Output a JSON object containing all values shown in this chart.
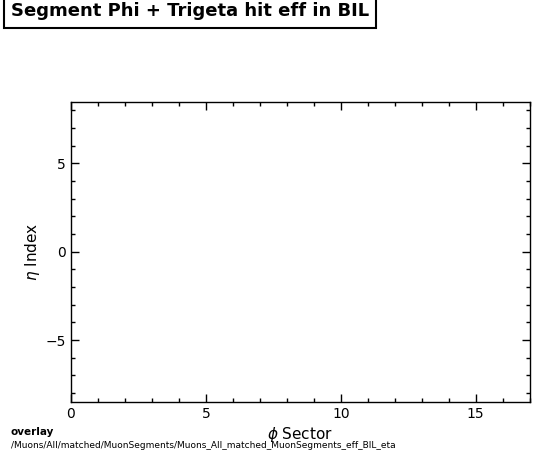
{
  "title": "Segment Phi + Trigeta hit eff in BIL",
  "xlabel": "$\\phi$ Sector",
  "ylabel": "$\\eta$ Index",
  "xlim": [
    0,
    17
  ],
  "ylim": [
    -8.5,
    8.5
  ],
  "xticks": [
    0,
    5,
    10,
    15
  ],
  "yticks": [
    -5,
    0,
    5
  ],
  "bottom_text_line1": "overlay",
  "bottom_text_line2": "/Muons/All/matched/MuonSegments/Muons_All_matched_MuonSegments_eff_BIL_eta",
  "background_color": "#ffffff",
  "title_fontsize": 13,
  "label_fontsize": 11,
  "tick_fontsize": 10
}
